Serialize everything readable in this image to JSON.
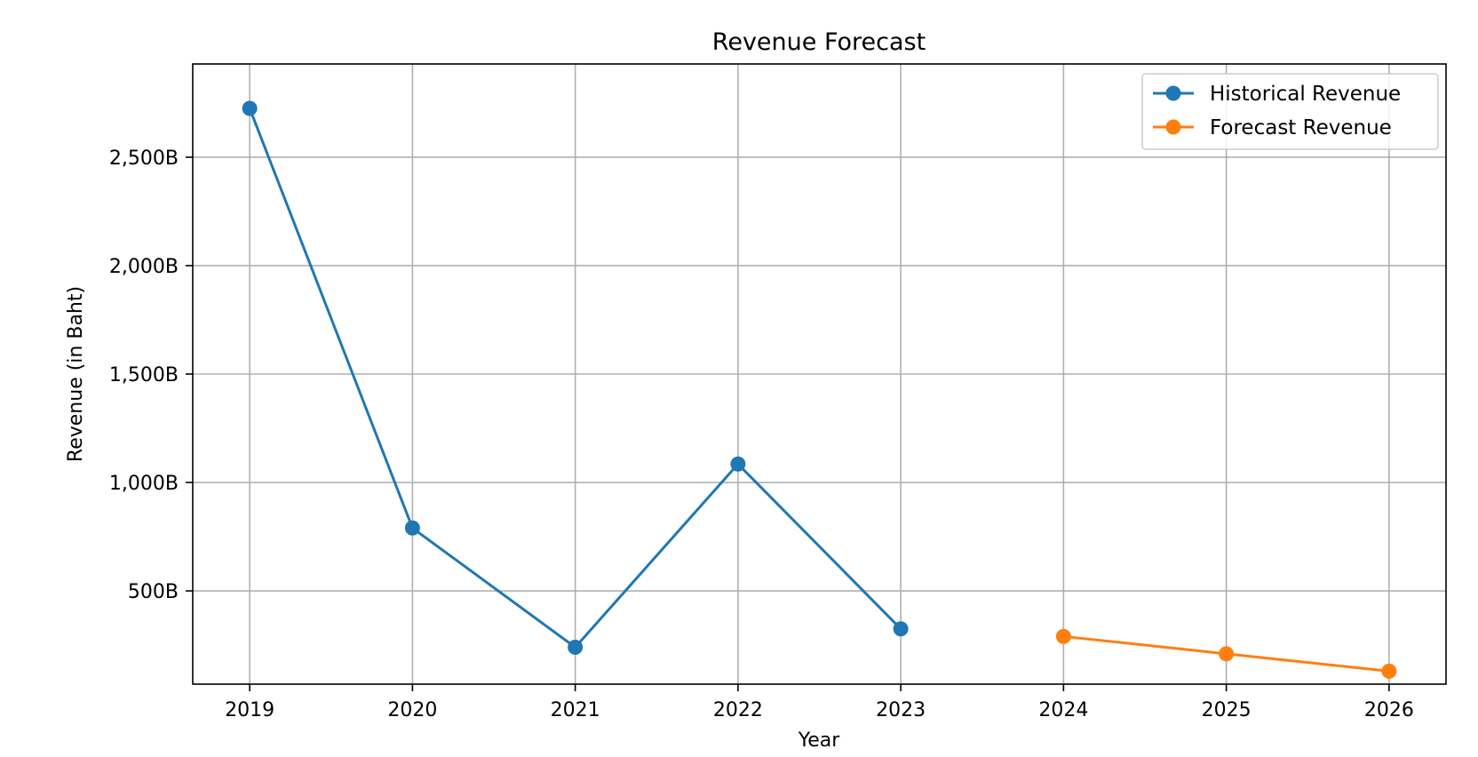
{
  "chart_data": {
    "type": "line",
    "title": "Revenue Forecast",
    "xlabel": "Year",
    "ylabel": "Revenue (in Baht)",
    "x": [
      2019,
      2020,
      2021,
      2022,
      2023,
      2024,
      2025,
      2026
    ],
    "xlim": [
      2018.65,
      2026.35
    ],
    "ylim": [
      70,
      2930
    ],
    "y_ticks": [
      500,
      1000,
      1500,
      2000,
      2500
    ],
    "y_tick_labels": [
      "500B",
      "1,000B",
      "1,500B",
      "2,000B",
      "2,500B"
    ],
    "x_tick_labels": [
      "2019",
      "2020",
      "2021",
      "2022",
      "2023",
      "2024",
      "2025",
      "2026"
    ],
    "grid": true,
    "legend_position": "top-right",
    "series": [
      {
        "name": "Historical Revenue",
        "color": "#1f77b4",
        "marker": "circle",
        "x": [
          2019,
          2020,
          2021,
          2022,
          2023
        ],
        "values": [
          2725,
          790,
          240,
          1085,
          325
        ]
      },
      {
        "name": "Forecast Revenue",
        "color": "#ff7f0e",
        "marker": "circle",
        "x": [
          2024,
          2025,
          2026
        ],
        "values": [
          290,
          210,
          130
        ]
      }
    ]
  }
}
